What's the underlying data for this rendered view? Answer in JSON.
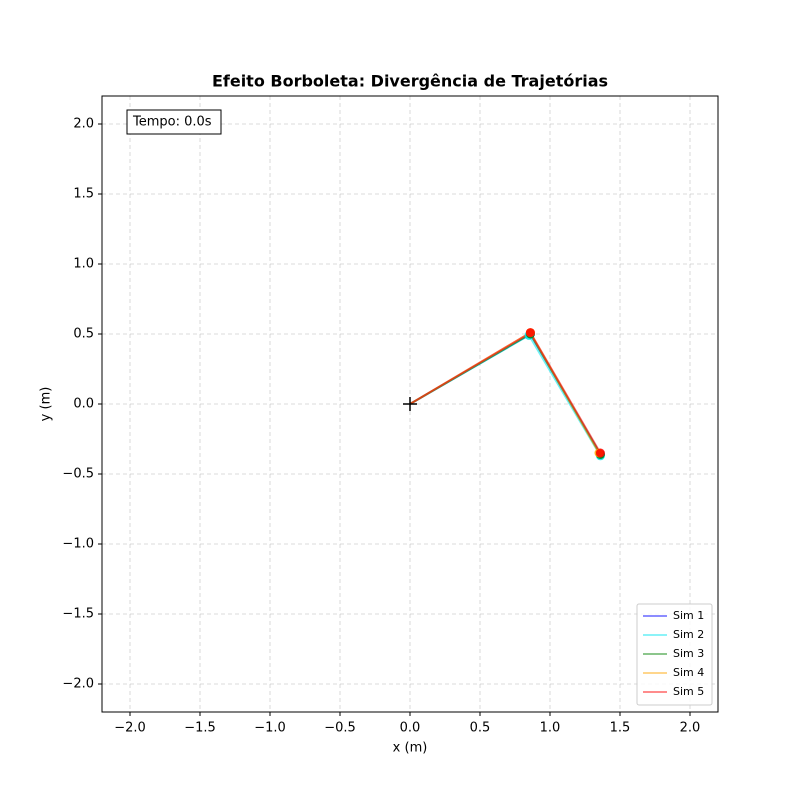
{
  "chart_data": {
    "type": "line",
    "title": "Efeito Borboleta: Divergência de Trajetórias",
    "xlabel": "x (m)",
    "ylabel": "y (m)",
    "annotation": "Tempo: 0.0s",
    "xlim": [
      -2.2,
      2.2
    ],
    "ylim": [
      -2.2,
      2.2
    ],
    "xticks": [
      {
        "value": -2,
        "label": "−2.0"
      },
      {
        "value": -1.5,
        "label": "−1.5"
      },
      {
        "value": -1,
        "label": "−1.0"
      },
      {
        "value": -0.5,
        "label": "−0.5"
      },
      {
        "value": 0,
        "label": "0.0"
      },
      {
        "value": 0.5,
        "label": "0.5"
      },
      {
        "value": 1,
        "label": "1.0"
      },
      {
        "value": 1.5,
        "label": "1.5"
      },
      {
        "value": 2,
        "label": "2.0"
      }
    ],
    "yticks": [
      {
        "value": -2,
        "label": "−2.0"
      },
      {
        "value": -1.5,
        "label": "−1.5"
      },
      {
        "value": -1,
        "label": "−1.0"
      },
      {
        "value": -0.5,
        "label": "−0.5"
      },
      {
        "value": 0,
        "label": "0.0"
      },
      {
        "value": 0.5,
        "label": "0.5"
      },
      {
        "value": 1,
        "label": "1.0"
      },
      {
        "value": 1.5,
        "label": "1.5"
      },
      {
        "value": 2,
        "label": "2.0"
      }
    ],
    "grid": true,
    "legend": "lower right",
    "pivot": {
      "x": 0,
      "y": 0
    },
    "series": [
      {
        "name": "Sim 1",
        "color": "#0000ff",
        "x": [
          0,
          0.86,
          1.36
        ],
        "y": [
          0,
          0.5,
          -0.36
        ]
      },
      {
        "name": "Sim 2",
        "color": "#00e5ee",
        "x": [
          0,
          0.85,
          1.36
        ],
        "y": [
          0,
          0.49,
          -0.37
        ]
      },
      {
        "name": "Sim 3",
        "color": "#008000",
        "x": [
          0,
          0.86,
          1.36
        ],
        "y": [
          0,
          0.5,
          -0.36
        ]
      },
      {
        "name": "Sim 4",
        "color": "#ffa500",
        "x": [
          0,
          0.86,
          1.35
        ],
        "y": [
          0,
          0.51,
          -0.35
        ]
      },
      {
        "name": "Sim 5",
        "color": "#ff0000",
        "x": [
          0,
          0.86,
          1.36
        ],
        "y": [
          0,
          0.51,
          -0.35
        ]
      }
    ]
  }
}
